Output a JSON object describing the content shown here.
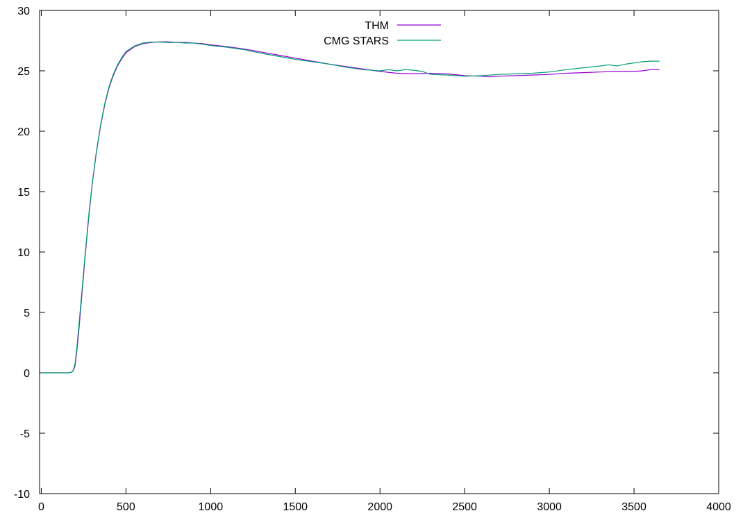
{
  "chart_data": {
    "type": "line",
    "title": "",
    "xlabel": "",
    "ylabel": "",
    "xlim": [
      -10,
      4000
    ],
    "ylim": [
      -10,
      30
    ],
    "xticks": [
      0,
      500,
      1000,
      1500,
      2000,
      2500,
      3000,
      3500,
      4000
    ],
    "yticks": [
      -10,
      -5,
      0,
      5,
      10,
      15,
      20,
      25,
      30
    ],
    "grid": false,
    "legend_position": "top-center",
    "series": [
      {
        "name": "THM",
        "color": "#9400d3",
        "x": [
          0,
          160,
          180,
          190,
          200,
          210,
          220,
          240,
          260,
          280,
          300,
          325,
          350,
          375,
          400,
          425,
          450,
          475,
          500,
          550,
          600,
          650,
          700,
          750,
          800,
          850,
          900,
          950,
          1000,
          1100,
          1200,
          1300,
          1400,
          1500,
          1600,
          1700,
          1800,
          1900,
          2000,
          2100,
          2200,
          2300,
          2400,
          2500,
          2600,
          2650,
          2700,
          2800,
          2900,
          3000,
          3100,
          3200,
          3300,
          3400,
          3500,
          3550,
          3600,
          3650
        ],
        "y": [
          0,
          0,
          0.05,
          0.2,
          0.6,
          1.8,
          3.2,
          6.5,
          9.8,
          12.8,
          15.5,
          18.2,
          20.4,
          22.2,
          23.6,
          24.6,
          25.4,
          26.0,
          26.5,
          27.0,
          27.25,
          27.35,
          27.4,
          27.4,
          27.35,
          27.35,
          27.3,
          27.25,
          27.15,
          27.0,
          26.8,
          26.55,
          26.3,
          26.05,
          25.8,
          25.55,
          25.35,
          25.15,
          24.95,
          24.8,
          24.75,
          24.8,
          24.75,
          24.6,
          24.55,
          24.5,
          24.55,
          24.6,
          24.65,
          24.7,
          24.8,
          24.85,
          24.9,
          24.95,
          24.95,
          25.0,
          25.1,
          25.1
        ]
      },
      {
        "name": "CMG STARS",
        "color": "#009e73",
        "x": [
          0,
          160,
          180,
          190,
          200,
          210,
          220,
          240,
          260,
          280,
          300,
          325,
          350,
          375,
          400,
          425,
          450,
          475,
          500,
          550,
          600,
          650,
          700,
          750,
          800,
          850,
          900,
          950,
          1000,
          1100,
          1200,
          1300,
          1400,
          1500,
          1600,
          1700,
          1800,
          1900,
          2000,
          2050,
          2100,
          2150,
          2200,
          2250,
          2300,
          2400,
          2500,
          2600,
          2700,
          2800,
          2900,
          3000,
          3100,
          3200,
          3300,
          3350,
          3400,
          3450,
          3500,
          3550,
          3600,
          3650
        ],
        "y": [
          0,
          0,
          0.05,
          0.25,
          0.8,
          2.1,
          3.6,
          6.8,
          10.0,
          13.0,
          15.6,
          18.3,
          20.5,
          22.3,
          23.7,
          24.7,
          25.5,
          26.1,
          26.6,
          27.05,
          27.3,
          27.38,
          27.38,
          27.35,
          27.35,
          27.3,
          27.3,
          27.2,
          27.1,
          26.95,
          26.75,
          26.45,
          26.2,
          25.95,
          25.75,
          25.55,
          25.3,
          25.1,
          25.0,
          25.1,
          25.0,
          25.1,
          25.05,
          24.95,
          24.7,
          24.65,
          24.55,
          24.6,
          24.7,
          24.75,
          24.8,
          24.9,
          25.1,
          25.25,
          25.4,
          25.5,
          25.4,
          25.55,
          25.65,
          25.75,
          25.8,
          25.8
        ]
      }
    ]
  }
}
